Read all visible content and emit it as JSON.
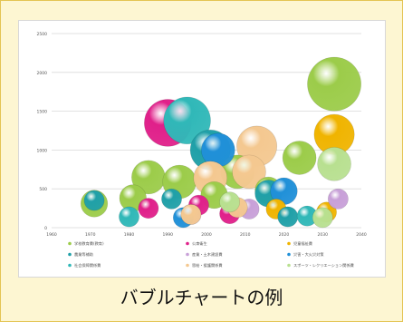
{
  "caption": "バブルチャートの例",
  "colors": {
    "page_bg": "#fdf6d2",
    "frame_border": "#e4c454",
    "grid": "#d9d9d9",
    "axis_text": "#555555"
  },
  "chart_data": {
    "type": "scatter",
    "bubble": true,
    "title": "",
    "xlabel": "",
    "ylabel": "",
    "xlim": [
      1960,
      2040
    ],
    "ylim": [
      0,
      2500
    ],
    "x_ticks": [
      1960,
      1970,
      1980,
      1990,
      2000,
      2010,
      2020,
      2030,
      2040
    ],
    "y_ticks": [
      0,
      500,
      1000,
      1500,
      2000,
      2500
    ],
    "grid": true,
    "legend_position": "bottom",
    "series": [
      {
        "name": "学校教育費(教育)",
        "color": "#9ccc4a",
        "points": [
          {
            "x": 1971,
            "y": 310,
            "r": 4
          },
          {
            "x": 1981,
            "y": 380,
            "r": 4
          },
          {
            "x": 1985,
            "y": 650,
            "r": 5
          },
          {
            "x": 1993,
            "y": 590,
            "r": 5
          },
          {
            "x": 2008,
            "y": 720,
            "r": 5
          },
          {
            "x": 2024,
            "y": 900,
            "r": 5
          },
          {
            "x": 2033,
            "y": 1850,
            "r": 8
          },
          {
            "x": 2002,
            "y": 420,
            "r": 4
          },
          {
            "x": 2016,
            "y": 480,
            "r": 4
          }
        ]
      },
      {
        "name": "公衆衛生",
        "color": "#e0208a",
        "points": [
          {
            "x": 1990,
            "y": 1350,
            "r": 7
          },
          {
            "x": 1985,
            "y": 250,
            "r": 3
          },
          {
            "x": 1998,
            "y": 290,
            "r": 3
          },
          {
            "x": 2006,
            "y": 180,
            "r": 3
          }
        ]
      },
      {
        "name": "児童福祉費",
        "color": "#f0b400",
        "points": [
          {
            "x": 2033,
            "y": 1200,
            "r": 6
          },
          {
            "x": 2031,
            "y": 200,
            "r": 3
          },
          {
            "x": 2018,
            "y": 240,
            "r": 3
          }
        ]
      },
      {
        "name": "農業等補助",
        "color": "#20a0a8",
        "points": [
          {
            "x": 1971,
            "y": 350,
            "r": 3
          },
          {
            "x": 1991,
            "y": 370,
            "r": 3
          },
          {
            "x": 2001,
            "y": 1000,
            "r": 6
          },
          {
            "x": 2016,
            "y": 440,
            "r": 4
          },
          {
            "x": 2021,
            "y": 140,
            "r": 3
          }
        ]
      },
      {
        "name": "産業・土木建設費",
        "color": "#c8a0d8",
        "points": [
          {
            "x": 2034,
            "y": 370,
            "r": 3
          },
          {
            "x": 2011,
            "y": 240,
            "r": 3
          },
          {
            "x": 1996,
            "y": 170,
            "r": 3
          }
        ]
      },
      {
        "name": "災害・大火災対策",
        "color": "#2090d8",
        "points": [
          {
            "x": 2003,
            "y": 1000,
            "r": 5
          },
          {
            "x": 2020,
            "y": 470,
            "r": 4
          },
          {
            "x": 1994,
            "y": 130,
            "r": 3
          }
        ]
      },
      {
        "name": "社会保障関係費",
        "color": "#30b8b8",
        "points": [
          {
            "x": 1995,
            "y": 1380,
            "r": 7
          },
          {
            "x": 1980,
            "y": 140,
            "r": 3
          },
          {
            "x": 2026,
            "y": 150,
            "r": 3
          }
        ]
      },
      {
        "name": "恩給・援護関係費",
        "color": "#f4c890",
        "points": [
          {
            "x": 2001,
            "y": 640,
            "r": 5
          },
          {
            "x": 2013,
            "y": 1050,
            "r": 6
          },
          {
            "x": 2011,
            "y": 720,
            "r": 5
          },
          {
            "x": 1996,
            "y": 170,
            "r": 3
          },
          {
            "x": 2008,
            "y": 260,
            "r": 3
          }
        ]
      },
      {
        "name": "スポーツ・レクリエーション関係費",
        "color": "#b8e090",
        "points": [
          {
            "x": 2033,
            "y": 820,
            "r": 5
          },
          {
            "x": 2030,
            "y": 130,
            "r": 3
          },
          {
            "x": 2006,
            "y": 330,
            "r": 3
          }
        ]
      }
    ],
    "legend_entries": [
      "学校教育費(教育)",
      "公衆衛生",
      "児童福祉費",
      "農業等補助",
      "産業・土木建設費",
      "災害・大火災対策",
      "社会保障関係費",
      "恩給・援護関係費",
      "スポーツ・レクリエーション関係費"
    ]
  }
}
